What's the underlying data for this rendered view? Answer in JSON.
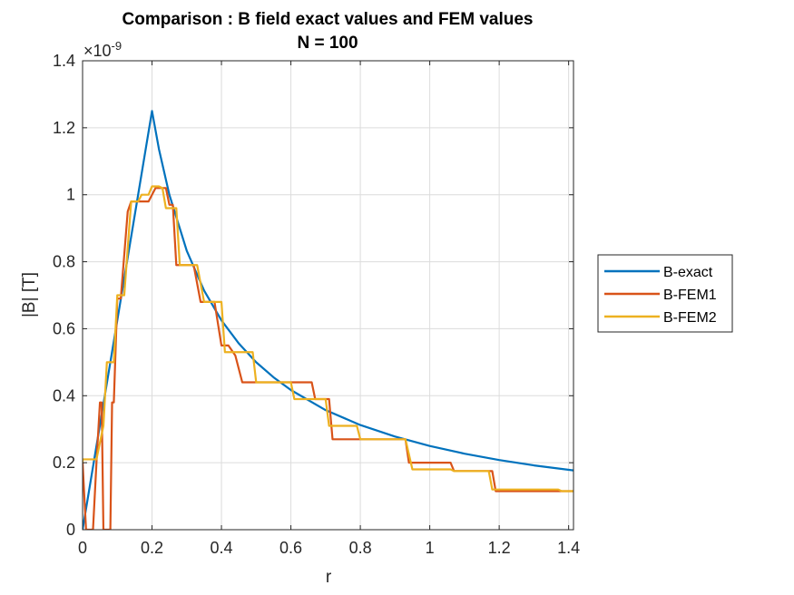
{
  "chart_data": {
    "type": "line",
    "title": "Comparison : B field exact values and FEM values",
    "subtitle": "N = 100",
    "xlabel": "r",
    "ylabel": "|B| [T]",
    "y_exponent_label": "×10",
    "y_exponent_power": "-9",
    "xlim": [
      0,
      1.414
    ],
    "ylim": [
      0,
      1.4
    ],
    "xticks": [
      0,
      0.2,
      0.4,
      0.6,
      0.8,
      1,
      1.2,
      1.4
    ],
    "xtick_labels": [
      "0",
      "0.2",
      "0.4",
      "0.6",
      "0.8",
      "1",
      "1.2",
      "1.4"
    ],
    "yticks": [
      0,
      0.2,
      0.4,
      0.6,
      0.8,
      1,
      1.2,
      1.4
    ],
    "ytick_labels": [
      "0",
      "0.2",
      "0.4",
      "0.6",
      "0.8",
      "1",
      "1.2",
      "1.4"
    ],
    "grid": true,
    "legend_position": "outside-right",
    "series": [
      {
        "name": "B-exact",
        "color": "#0072BD",
        "x": [
          0,
          0.04,
          0.08,
          0.12,
          0.16,
          0.2,
          0.22,
          0.25,
          0.3,
          0.35,
          0.4,
          0.45,
          0.5,
          0.55,
          0.6,
          0.7,
          0.8,
          0.9,
          1.0,
          1.1,
          1.2,
          1.3,
          1.414
        ],
        "y": [
          0,
          0.25,
          0.5,
          0.75,
          1.0,
          1.25,
          1.136,
          1.0,
          0.833,
          0.714,
          0.625,
          0.556,
          0.5,
          0.455,
          0.417,
          0.357,
          0.3125,
          0.278,
          0.25,
          0.227,
          0.208,
          0.192,
          0.177
        ]
      },
      {
        "name": "B-FEM1",
        "color": "#D95319",
        "x": [
          0,
          0.0001,
          0.01,
          0.03,
          0.04,
          0.05,
          0.055,
          0.06,
          0.07,
          0.08,
          0.085,
          0.09,
          0.1,
          0.11,
          0.13,
          0.14,
          0.17,
          0.19,
          0.2,
          0.21,
          0.24,
          0.25,
          0.26,
          0.27,
          0.28,
          0.29,
          0.32,
          0.34,
          0.38,
          0.4,
          0.42,
          0.44,
          0.46,
          0.66,
          0.67,
          0.71,
          0.72,
          0.8,
          0.93,
          0.94,
          0.95,
          1.06,
          1.07,
          1.17,
          1.18,
          1.19,
          1.39,
          1.414
        ],
        "y": [
          0.2,
          0.2,
          0,
          0,
          0.2,
          0.38,
          0.38,
          0,
          0,
          0,
          0.38,
          0.38,
          0.69,
          0.69,
          0.95,
          0.98,
          0.98,
          0.98,
          1.0,
          1.02,
          1.02,
          0.97,
          0.97,
          0.79,
          0.79,
          0.79,
          0.79,
          0.68,
          0.68,
          0.55,
          0.55,
          0.52,
          0.44,
          0.44,
          0.39,
          0.39,
          0.27,
          0.27,
          0.27,
          0.2,
          0.2,
          0.2,
          0.175,
          0.175,
          0.175,
          0.115,
          0.115,
          0.115
        ]
      },
      {
        "name": "B-FEM2",
        "color": "#EDB120",
        "x": [
          0,
          0.0001,
          0.02,
          0.04,
          0.06,
          0.07,
          0.08,
          0.09,
          0.1,
          0.11,
          0.12,
          0.14,
          0.15,
          0.16,
          0.17,
          0.19,
          0.2,
          0.22,
          0.23,
          0.24,
          0.26,
          0.27,
          0.28,
          0.29,
          0.32,
          0.33,
          0.35,
          0.4,
          0.41,
          0.48,
          0.49,
          0.5,
          0.51,
          0.6,
          0.61,
          0.68,
          0.69,
          0.7,
          0.71,
          0.78,
          0.79,
          0.8,
          0.81,
          0.92,
          0.93,
          0.95,
          0.96,
          1.06,
          1.07,
          1.15,
          1.16,
          1.17,
          1.18,
          1.37,
          1.38,
          1.414
        ],
        "y": [
          0.2,
          0.21,
          0.21,
          0.21,
          0.31,
          0.5,
          0.5,
          0.5,
          0.7,
          0.7,
          0.7,
          0.98,
          0.98,
          0.98,
          1.0,
          1.0,
          1.025,
          1.025,
          1.02,
          0.96,
          0.96,
          0.96,
          0.79,
          0.79,
          0.79,
          0.79,
          0.68,
          0.68,
          0.53,
          0.53,
          0.53,
          0.44,
          0.44,
          0.44,
          0.39,
          0.39,
          0.39,
          0.39,
          0.31,
          0.31,
          0.31,
          0.27,
          0.27,
          0.27,
          0.27,
          0.18,
          0.18,
          0.18,
          0.175,
          0.175,
          0.175,
          0.175,
          0.12,
          0.12,
          0.115,
          0.115
        ]
      }
    ]
  }
}
